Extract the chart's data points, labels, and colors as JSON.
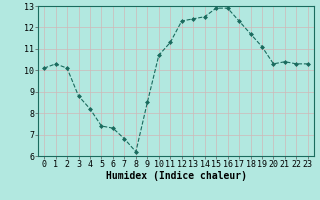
{
  "x": [
    0,
    1,
    2,
    3,
    4,
    5,
    6,
    7,
    8,
    9,
    10,
    11,
    12,
    13,
    14,
    15,
    16,
    17,
    18,
    19,
    20,
    21,
    22,
    23
  ],
  "y": [
    10.1,
    10.3,
    10.1,
    8.8,
    8.2,
    7.4,
    7.3,
    6.8,
    6.2,
    8.5,
    10.7,
    11.3,
    12.3,
    12.4,
    12.5,
    12.9,
    12.9,
    12.3,
    11.7,
    11.1,
    10.3,
    10.4,
    10.3,
    10.3
  ],
  "line_color": "#1a6b5e",
  "marker": "D",
  "marker_size": 2.0,
  "bg_color": "#b2e8e0",
  "grid_color": "#d0b8b8",
  "xlabel": "Humidex (Indice chaleur)",
  "xlim": [
    -0.5,
    23.5
  ],
  "ylim": [
    6,
    13
  ],
  "yticks": [
    6,
    7,
    8,
    9,
    10,
    11,
    12,
    13
  ],
  "xticks": [
    0,
    1,
    2,
    3,
    4,
    5,
    6,
    7,
    8,
    9,
    10,
    11,
    12,
    13,
    14,
    15,
    16,
    17,
    18,
    19,
    20,
    21,
    22,
    23
  ],
  "xlabel_fontsize": 7,
  "tick_fontsize": 6,
  "linewidth": 0.8
}
